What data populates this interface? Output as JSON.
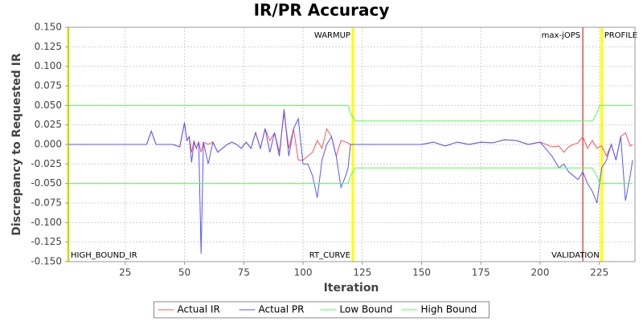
{
  "chart_data": {
    "type": "line",
    "title": "IR/PR Accuracy",
    "x_label": "Iteration",
    "y_label": "Discrepancy to Requested IR",
    "xlim": [
      1,
      240
    ],
    "ylim": [
      -0.15,
      0.15
    ],
    "xticks": [
      25,
      50,
      75,
      100,
      125,
      150,
      175,
      200,
      225
    ],
    "yticks": [
      {
        "value": -0.15,
        "label": "-0.150"
      },
      {
        "value": -0.125,
        "label": "-0.125"
      },
      {
        "value": -0.1,
        "label": "-0.100"
      },
      {
        "value": -0.075,
        "label": "-0.075"
      },
      {
        "value": -0.05,
        "label": "-0.050"
      },
      {
        "value": -0.025,
        "label": "-0.025"
      },
      {
        "value": 0,
        "label": "0.000"
      },
      {
        "value": 0.025,
        "label": "0.025"
      },
      {
        "value": 0.05,
        "label": "0.050"
      },
      {
        "value": 0.075,
        "label": "0.075"
      },
      {
        "value": 0.1,
        "label": "0.100"
      },
      {
        "value": 0.125,
        "label": "0.125"
      },
      {
        "value": 0.15,
        "label": "0.150"
      }
    ],
    "grid": true,
    "legend": "bottom",
    "x": [
      1,
      34,
      36,
      38,
      45,
      48,
      50,
      51,
      52,
      53,
      54,
      55,
      56,
      57,
      58,
      60,
      62,
      64,
      66,
      68,
      70,
      72,
      74,
      76,
      78,
      80,
      82,
      84,
      86,
      88,
      90,
      92,
      94,
      96,
      98,
      100,
      102,
      104,
      106,
      108,
      110,
      112,
      114,
      116,
      118,
      119,
      120,
      122,
      124,
      126,
      150,
      155,
      160,
      165,
      170,
      175,
      180,
      185,
      190,
      195,
      200,
      205,
      208,
      210,
      212,
      214,
      216,
      218,
      220,
      222,
      224,
      225,
      226,
      228,
      230,
      232,
      234,
      236,
      238,
      239
    ],
    "series": [
      {
        "name": "Actual IR",
        "color": "#ff5555",
        "values": [
          0,
          0,
          0.017,
          0,
          0,
          -0.003,
          0.028,
          0.005,
          0.01,
          -0.01,
          0.005,
          -0.005,
          0.003,
          -0.01,
          0.003,
          0,
          0.003,
          -0.01,
          -0.005,
          0,
          0.003,
          0,
          -0.005,
          0.003,
          -0.005,
          0.015,
          -0.005,
          0.02,
          0.005,
          0.015,
          -0.01,
          0.04,
          -0.005,
          0.02,
          -0.02,
          -0.02,
          -0.015,
          -0.01,
          0.005,
          -0.005,
          0.02,
          0.01,
          -0.015,
          0.005,
          0.003,
          0.002,
          0,
          0,
          0,
          0,
          0,
          0.003,
          -0.002,
          0.003,
          0,
          0.003,
          0.002,
          0.006,
          0.005,
          0,
          0.003,
          -0.003,
          -0.002,
          -0.01,
          -0.003,
          0,
          0.002,
          0.01,
          -0.005,
          0.005,
          -0.005,
          -0.003,
          -0.002,
          -0.015,
          0,
          -0.02,
          0.01,
          0.015,
          -0.002,
          0
        ]
      },
      {
        "name": "Actual PR",
        "color": "#5555ff",
        "values": [
          0,
          0,
          0.017,
          0,
          0,
          -0.003,
          0.028,
          0.005,
          0.01,
          -0.023,
          0.003,
          -0.005,
          0.003,
          -0.14,
          0.003,
          -0.025,
          0.003,
          -0.01,
          -0.005,
          0,
          0.003,
          0,
          -0.005,
          0.003,
          -0.005,
          0.015,
          -0.005,
          0.02,
          -0.01,
          0.015,
          -0.015,
          0.045,
          -0.015,
          0.02,
          0.033,
          -0.025,
          -0.025,
          -0.04,
          -0.068,
          -0.02,
          0,
          0.01,
          -0.015,
          -0.055,
          -0.04,
          -0.03,
          0,
          0,
          0,
          0,
          0,
          0.003,
          -0.002,
          0.003,
          0,
          0.003,
          0.002,
          0.006,
          0.005,
          0,
          0.003,
          -0.015,
          -0.03,
          -0.025,
          -0.035,
          -0.04,
          -0.045,
          -0.035,
          -0.05,
          -0.06,
          -0.075,
          -0.05,
          -0.03,
          -0.02,
          0,
          -0.02,
          0.01,
          -0.072,
          -0.04,
          -0.02
        ]
      },
      {
        "name": "Low Bound",
        "color": "#55ff55",
        "values": [
          -0.05,
          -0.05,
          -0.05,
          -0.05,
          -0.05,
          -0.05,
          -0.05,
          -0.05,
          -0.05,
          -0.05,
          -0.05,
          -0.05,
          -0.05,
          -0.05,
          -0.05,
          -0.05,
          -0.05,
          -0.05,
          -0.05,
          -0.05,
          -0.05,
          -0.05,
          -0.05,
          -0.05,
          -0.05,
          -0.05,
          -0.05,
          -0.05,
          -0.05,
          -0.05,
          -0.05,
          -0.05,
          -0.05,
          -0.05,
          -0.05,
          -0.05,
          -0.05,
          -0.05,
          -0.05,
          -0.05,
          -0.05,
          -0.05,
          -0.05,
          -0.05,
          -0.05,
          -0.05,
          -0.04,
          -0.03,
          -0.03,
          -0.03,
          -0.03,
          -0.03,
          -0.03,
          -0.03,
          -0.03,
          -0.03,
          -0.03,
          -0.03,
          -0.03,
          -0.03,
          -0.03,
          -0.03,
          -0.03,
          -0.03,
          -0.03,
          -0.03,
          -0.03,
          -0.03,
          -0.03,
          -0.03,
          -0.04,
          -0.05,
          -0.05,
          -0.05,
          -0.05,
          -0.05,
          -0.05,
          -0.05,
          -0.05,
          -0.05
        ]
      },
      {
        "name": "High Bound",
        "color": "#55ff55",
        "values": [
          0.05,
          0.05,
          0.05,
          0.05,
          0.05,
          0.05,
          0.05,
          0.05,
          0.05,
          0.05,
          0.05,
          0.05,
          0.05,
          0.05,
          0.05,
          0.05,
          0.05,
          0.05,
          0.05,
          0.05,
          0.05,
          0.05,
          0.05,
          0.05,
          0.05,
          0.05,
          0.05,
          0.05,
          0.05,
          0.05,
          0.05,
          0.05,
          0.05,
          0.05,
          0.05,
          0.05,
          0.05,
          0.05,
          0.05,
          0.05,
          0.05,
          0.05,
          0.05,
          0.05,
          0.05,
          0.05,
          0.04,
          0.03,
          0.03,
          0.03,
          0.03,
          0.03,
          0.03,
          0.03,
          0.03,
          0.03,
          0.03,
          0.03,
          0.03,
          0.03,
          0.03,
          0.03,
          0.03,
          0.03,
          0.03,
          0.03,
          0.03,
          0.03,
          0.03,
          0.03,
          0.04,
          0.05,
          0.05,
          0.05,
          0.05,
          0.05,
          0.05,
          0.05,
          0.05,
          0.05
        ]
      }
    ],
    "markers": [
      {
        "value": 1,
        "label": "HIGH_BOUND_IR",
        "color": "#ffff00",
        "label_position": "bottom-right"
      },
      {
        "value": 121,
        "label": "WARMUP",
        "color": "#ffff00",
        "label_position": "top-left"
      },
      {
        "value": 121,
        "label": "RT_CURVE",
        "color": "#ffff00",
        "label_position": "bottom-left"
      },
      {
        "value": 218,
        "label": "max-jOPS",
        "color": "#cc0000",
        "label_position": "top-left"
      },
      {
        "value": 226,
        "label": "PROFILE",
        "color": "#ffff00",
        "label_position": "top-right"
      },
      {
        "value": 226,
        "label": "VALIDATION",
        "color": "#ffff00",
        "label_position": "bottom-left"
      }
    ]
  }
}
